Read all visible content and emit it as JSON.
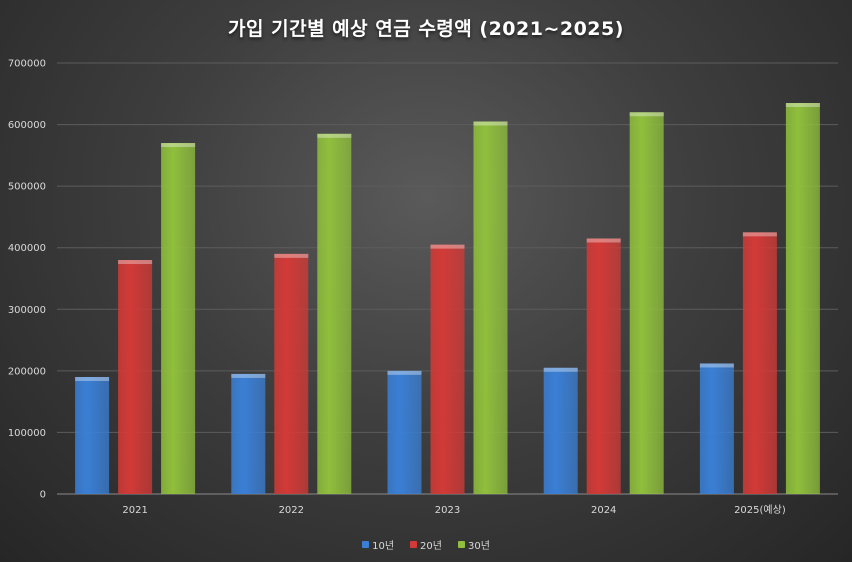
{
  "chart_data": {
    "type": "bar",
    "title": "가입 기간별 예상 연금 수령액 (2021~2025)",
    "categories": [
      "2021",
      "2022",
      "2023",
      "2024",
      "2025(예상)"
    ],
    "series": [
      {
        "name": "10년",
        "values": [
          190000,
          195000,
          200000,
          205000,
          212000
        ],
        "color": "#3a7fd5"
      },
      {
        "name": "20년",
        "values": [
          380000,
          390000,
          405000,
          415000,
          425000
        ],
        "color": "#d23a37"
      },
      {
        "name": "30년",
        "values": [
          570000,
          585000,
          605000,
          620000,
          635000
        ],
        "color": "#8fbf3c"
      }
    ],
    "ylim": [
      0,
      700000
    ],
    "yticks": [
      "0",
      "100000",
      "200000",
      "300000",
      "400000",
      "500000",
      "600000",
      "700000"
    ],
    "grid": true,
    "legend_position": "bottom"
  }
}
